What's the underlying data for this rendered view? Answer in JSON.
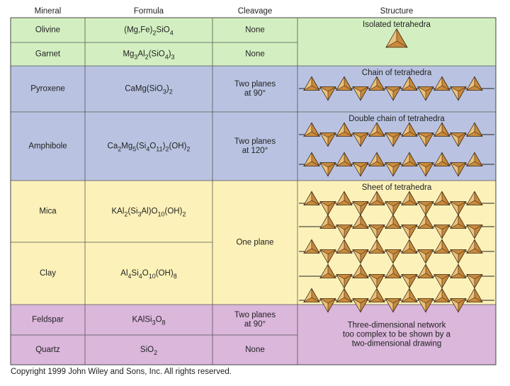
{
  "header": {
    "mineral": "Mineral",
    "formula": "Formula",
    "cleavage": "Cleavage",
    "structure": "Structure"
  },
  "rows": [
    {
      "mineral": "Olivine",
      "formula": "(Mg,Fe)2SiO4"
    },
    {
      "mineral": "Garnet",
      "formula": "Mg3Al2(SiO4)3"
    },
    {
      "mineral": "Pyroxene",
      "formula": "CaMg(SiO3)2"
    },
    {
      "mineral": "Amphibole",
      "formula": "Ca2Mg5(Si4O11)2(OH)2"
    },
    {
      "mineral": "Mica",
      "formula": "KAl2(Si3Al)O10(OH)2"
    },
    {
      "mineral": "Clay",
      "formula": "Al4Si4O10(OH)8"
    },
    {
      "mineral": "Feldspar",
      "formula": "KAlSi3O8"
    },
    {
      "mineral": "Quartz",
      "formula": "SiO2"
    }
  ],
  "cleavage": [
    [
      "None"
    ],
    [
      "None"
    ],
    [
      "Two planes",
      "at 90°"
    ],
    [
      "Two planes",
      "at 120°"
    ],
    [
      "One plane"
    ],
    [
      "Two planes",
      "at 90°"
    ],
    [
      "None"
    ]
  ],
  "structure": [
    [
      "Isolated tetrahedra"
    ],
    [
      "Chain of tetrahedra"
    ],
    [
      "Double chain of tetrahedra"
    ],
    [
      "Sheet of tetrahedra"
    ],
    [
      "Three-dimensional network",
      "too complex to be shown by a",
      "two-dimensional drawing"
    ]
  ],
  "footer": "Copyright 1999 John Wiley and Sons, Inc. All rights reserved."
}
